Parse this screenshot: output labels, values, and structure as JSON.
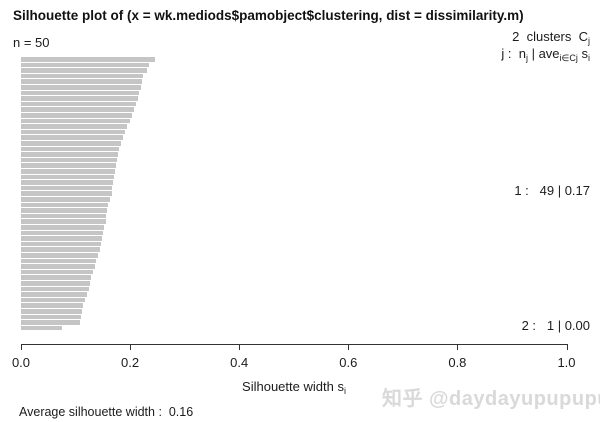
{
  "title": "Silhouette plot of (x = wk.mediods$pamobject$clustering, dist = dissimilarity.m)",
  "n_label": "n = 50",
  "header": {
    "line1_main": "2  clusters  C",
    "line1_sub": "j",
    "line2_p1": "j :  n",
    "line2_s1": "j",
    "line2_p2": " | ave",
    "line2_s2": "i∈Cj",
    "line2_p3": " s",
    "line2_s3": "i"
  },
  "cluster_labels": [
    "1 :   49 | 0.17",
    "2 :   1 | 0.00"
  ],
  "xaxis": {
    "tick_labels": [
      "0.0",
      "0.2",
      "0.4",
      "0.6",
      "0.8",
      "1.0"
    ],
    "title_main": "Silhouette width s",
    "title_sub": "i"
  },
  "average_label": "Average silhouette width :  0.16",
  "watermark": "知乎 @daydayupupupup",
  "colors": {
    "bar_fill": "#c5c5c5",
    "axis": "#333333",
    "text": "#1c1c1c",
    "watermark": "#d9d9d9"
  },
  "chart_data": {
    "type": "bar",
    "orientation": "horizontal",
    "title": "Silhouette plot of (x = wk.mediods$pamobject$clustering, dist = dissimilarity.m)",
    "xlabel": "Silhouette width s_i",
    "n": 50,
    "n_clusters": 2,
    "xlim": [
      0,
      1
    ],
    "x_ticks": [
      0,
      0.2,
      0.4,
      0.6,
      0.8,
      1.0
    ],
    "grid": false,
    "average_silhouette_width": 0.16,
    "clusters": [
      {
        "id": 1,
        "n": 49,
        "ave_width": 0.17,
        "values": [
          0.245,
          0.235,
          0.231,
          0.224,
          0.221,
          0.219,
          0.216,
          0.214,
          0.21,
          0.207,
          0.203,
          0.199,
          0.195,
          0.19,
          0.186,
          0.183,
          0.18,
          0.178,
          0.176,
          0.174,
          0.172,
          0.171,
          0.169,
          0.167,
          0.166,
          0.163,
          0.16,
          0.158,
          0.156,
          0.155,
          0.152,
          0.15,
          0.148,
          0.146,
          0.144,
          0.141,
          0.138,
          0.135,
          0.131,
          0.128,
          0.126,
          0.124,
          0.121,
          0.117,
          0.113,
          0.111,
          0.11,
          0.108,
          0.075
        ]
      },
      {
        "id": 2,
        "n": 1,
        "ave_width": 0.0,
        "values": [
          0.0
        ]
      }
    ]
  }
}
